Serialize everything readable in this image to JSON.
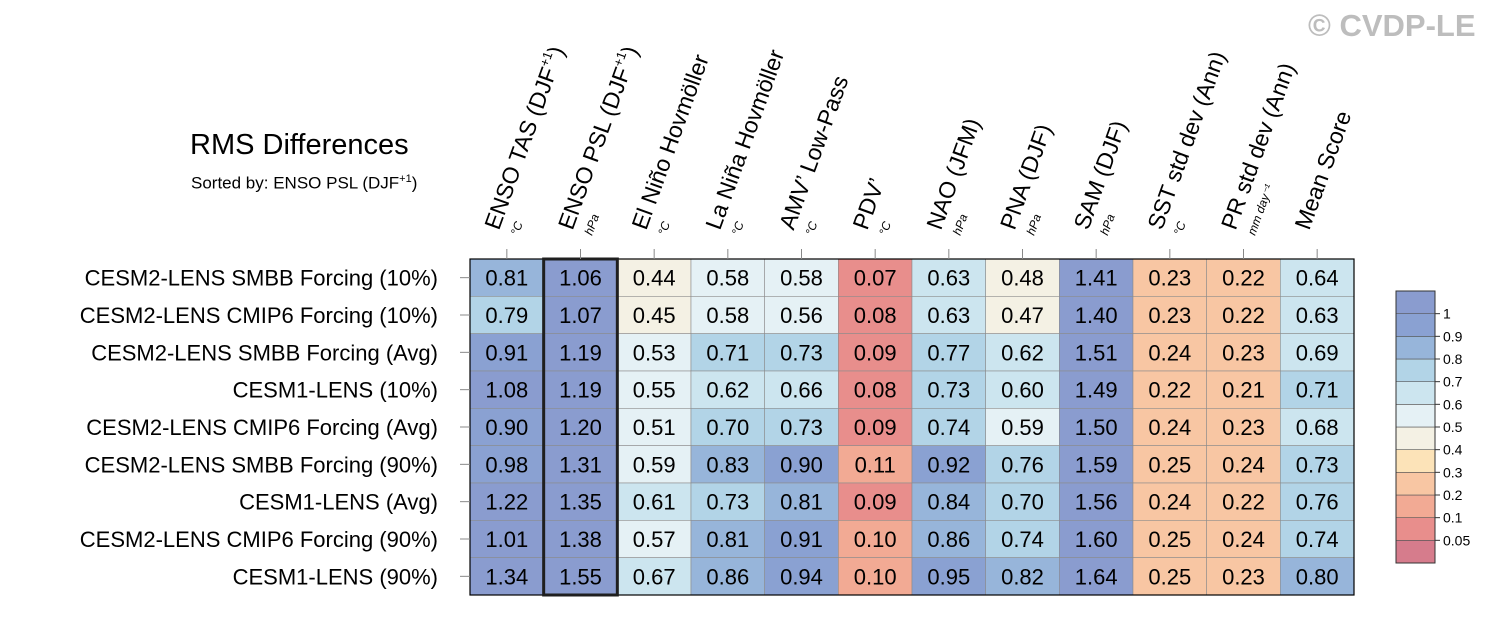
{
  "watermark": "© CVDP-LE",
  "chart_data": {
    "type": "heatmap",
    "title": "RMS Differences",
    "subtitle": {
      "prefix": "Sorted by: ",
      "text": "ENSO PSL (DJF",
      "sup": "+1",
      "suffix": ")"
    },
    "columns": [
      {
        "label": "ENSO TAS (DJF",
        "sup": "+1",
        "end": ")",
        "unit": "°C"
      },
      {
        "label": "ENSO PSL (DJF",
        "sup": "+1",
        "end": ")",
        "unit": "hPa"
      },
      {
        "label": "El Niño Hovmöller",
        "sup": "",
        "end": "",
        "unit": "°C"
      },
      {
        "label": "La Niña Hovmöller",
        "sup": "",
        "end": "",
        "unit": "°C"
      },
      {
        "label": "AMV’ Low-Pass",
        "sup": "",
        "end": "",
        "unit": "°C"
      },
      {
        "label": "PDV’",
        "sup": "",
        "end": "",
        "unit": "°C"
      },
      {
        "label": "NAO (JFM)",
        "sup": "",
        "end": "",
        "unit": "hPa"
      },
      {
        "label": "PNA (DJF)",
        "sup": "",
        "end": "",
        "unit": "hPa"
      },
      {
        "label": "SAM (DJF)",
        "sup": "",
        "end": "",
        "unit": "hPa"
      },
      {
        "label": "SST std dev (Ann)",
        "sup": "",
        "end": "",
        "unit": "°C"
      },
      {
        "label": "PR std dev (Ann)",
        "sup": "",
        "end": "",
        "unit": "mm day⁻¹"
      },
      {
        "label": "Mean Score",
        "sup": "",
        "end": "",
        "unit": ""
      }
    ],
    "rows": [
      "CESM2-LENS SMBB Forcing (10%)",
      "CESM2-LENS CMIP6 Forcing (10%)",
      "CESM2-LENS SMBB Forcing (Avg)",
      "CESM1-LENS (10%)",
      "CESM2-LENS CMIP6 Forcing (Avg)",
      "CESM2-LENS SMBB Forcing (90%)",
      "CESM1-LENS (Avg)",
      "CESM2-LENS CMIP6 Forcing (90%)",
      "CESM1-LENS (90%)"
    ],
    "values": [
      [
        0.81,
        1.06,
        0.44,
        0.58,
        0.58,
        0.07,
        0.63,
        0.48,
        1.41,
        0.23,
        0.22,
        0.64
      ],
      [
        0.79,
        1.07,
        0.45,
        0.58,
        0.56,
        0.08,
        0.63,
        0.47,
        1.4,
        0.23,
        0.22,
        0.63
      ],
      [
        0.91,
        1.19,
        0.53,
        0.71,
        0.73,
        0.09,
        0.77,
        0.62,
        1.51,
        0.24,
        0.23,
        0.69
      ],
      [
        1.08,
        1.19,
        0.55,
        0.62,
        0.66,
        0.08,
        0.73,
        0.6,
        1.49,
        0.22,
        0.21,
        0.71
      ],
      [
        0.9,
        1.2,
        0.51,
        0.7,
        0.73,
        0.09,
        0.74,
        0.59,
        1.5,
        0.24,
        0.23,
        0.68
      ],
      [
        0.98,
        1.31,
        0.59,
        0.83,
        0.9,
        0.11,
        0.92,
        0.76,
        1.59,
        0.25,
        0.24,
        0.73
      ],
      [
        1.22,
        1.35,
        0.61,
        0.73,
        0.81,
        0.09,
        0.84,
        0.7,
        1.56,
        0.24,
        0.22,
        0.76
      ],
      [
        1.01,
        1.38,
        0.57,
        0.81,
        0.91,
        0.1,
        0.86,
        0.74,
        1.6,
        0.25,
        0.24,
        0.74
      ],
      [
        1.34,
        1.55,
        0.67,
        0.86,
        0.94,
        0.1,
        0.95,
        0.82,
        1.64,
        0.25,
        0.23,
        0.8
      ]
    ],
    "sorted_column": 1,
    "colorbar": {
      "levels": [
        0.05,
        0.1,
        0.2,
        0.3,
        0.4,
        0.5,
        0.6,
        0.7,
        0.8,
        0.9,
        1
      ],
      "colors": [
        "#d67c8c",
        "#e88e8c",
        "#f2aa94",
        "#f8c6a3",
        "#fce3b8",
        "#f4f1e4",
        "#e5f1f5",
        "#cce5ef",
        "#b2d4e7",
        "#97b5da",
        "#8aa1d2",
        "#8a9ccf"
      ]
    }
  }
}
